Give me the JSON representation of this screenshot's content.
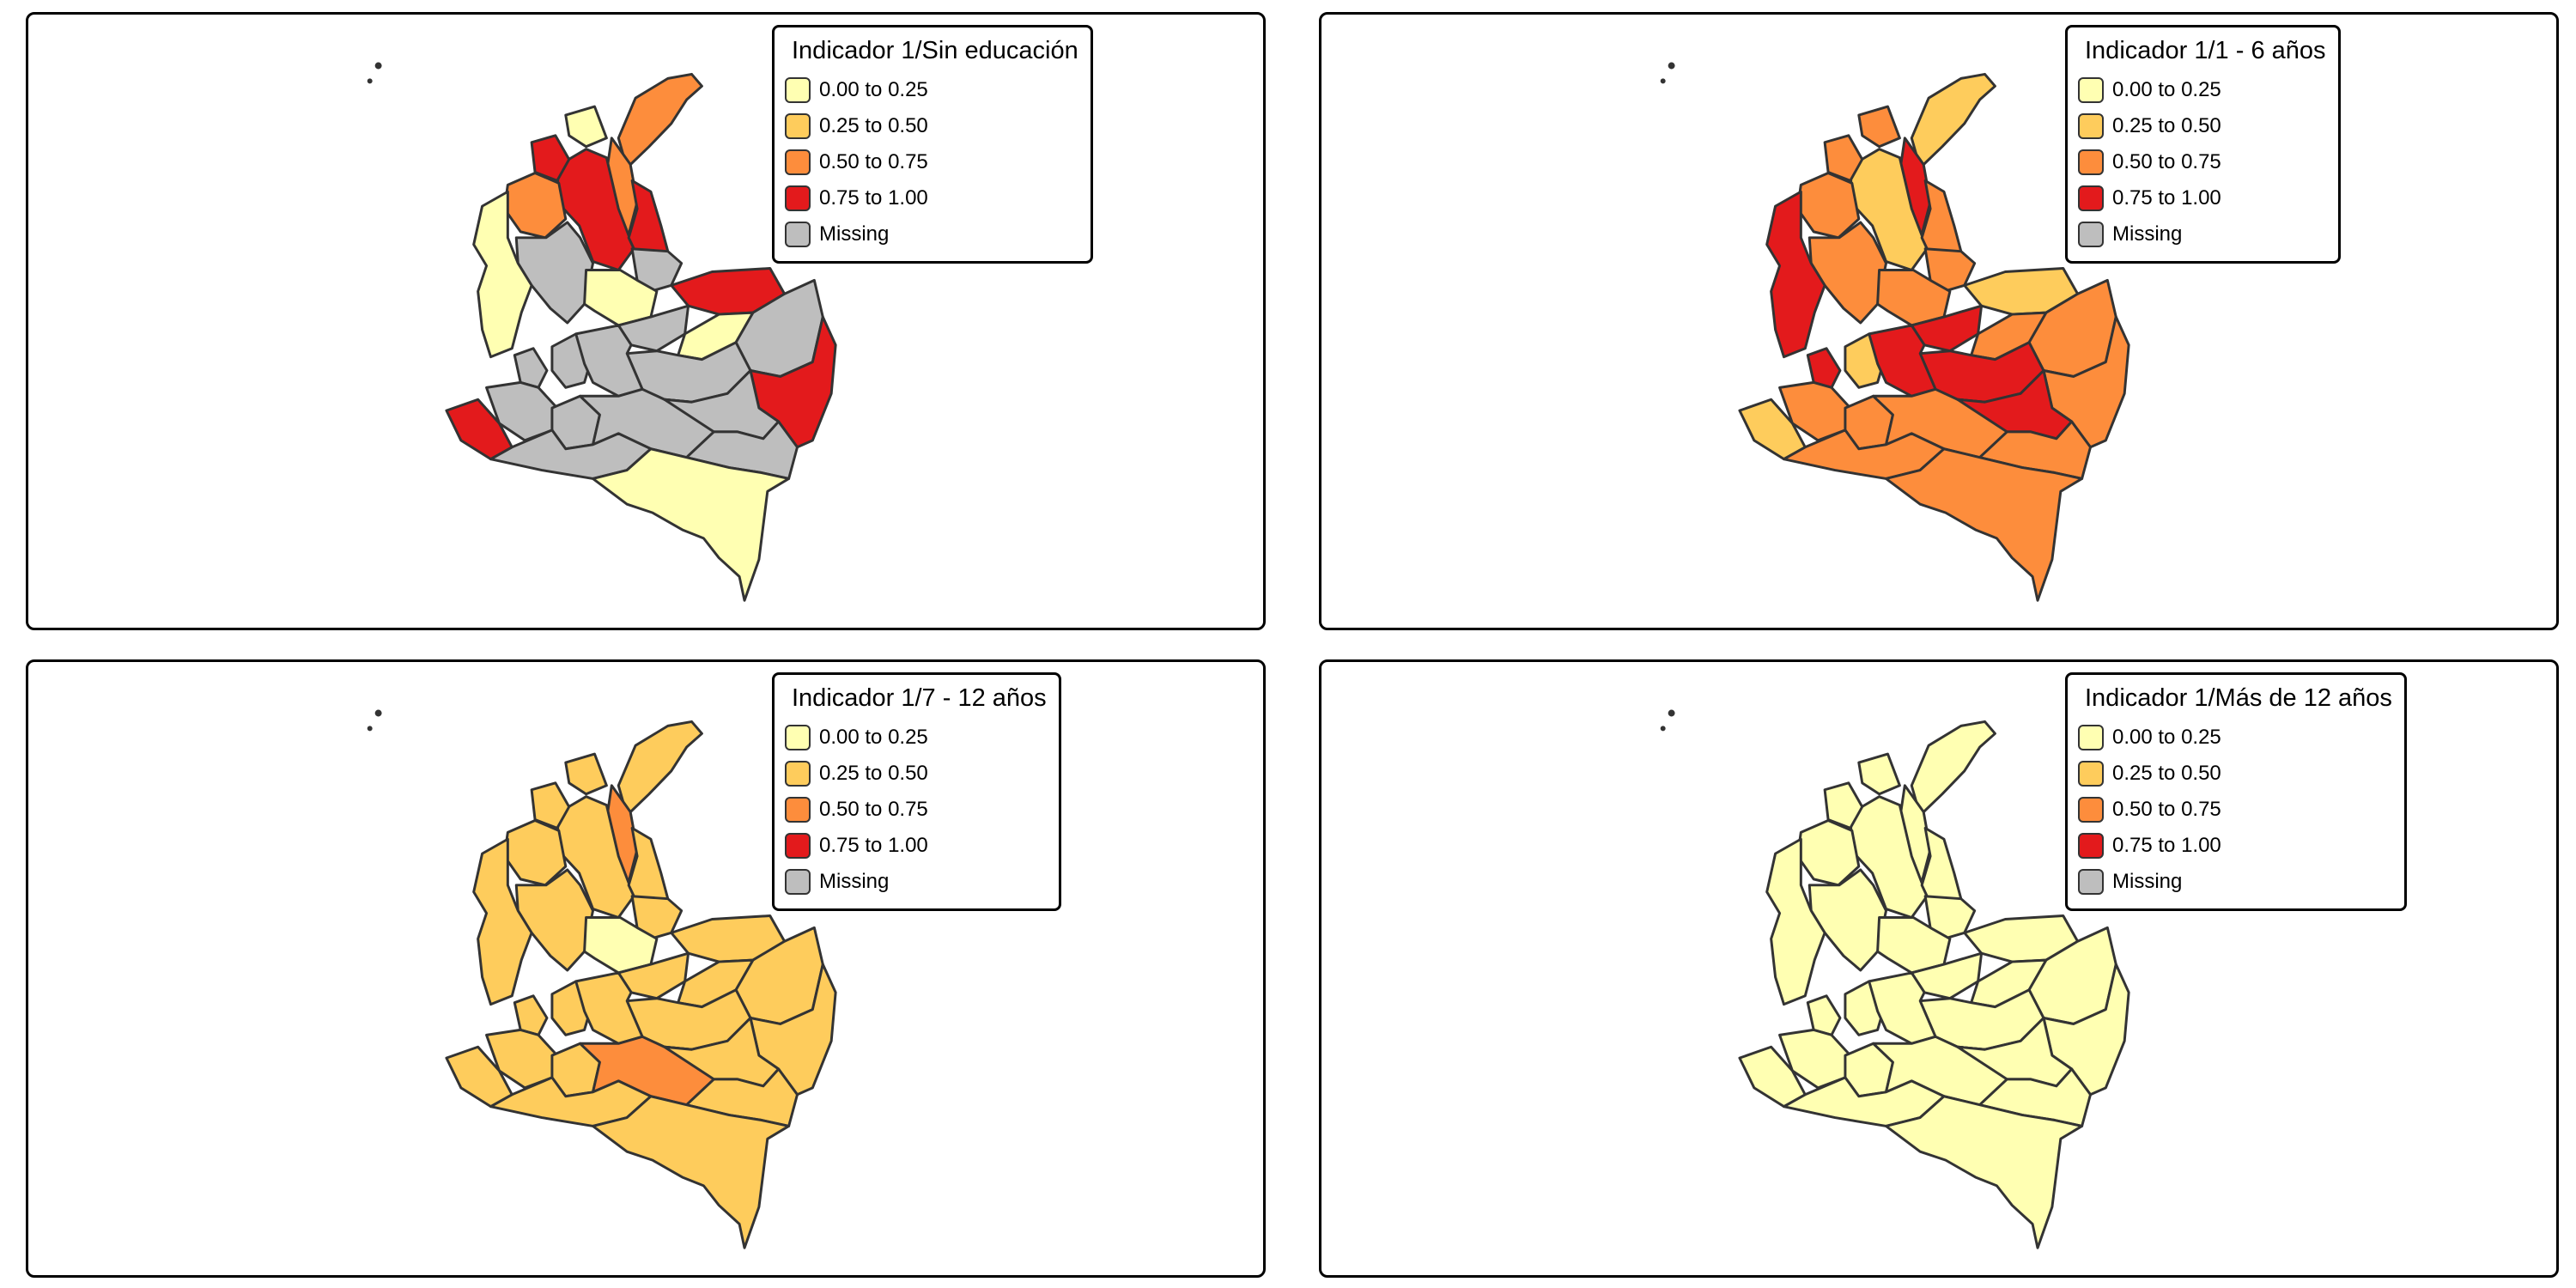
{
  "legend_classes": [
    {
      "label": "0.00 to 0.25",
      "color": "#ffffb2"
    },
    {
      "label": "0.25 to 0.50",
      "color": "#fecc5c"
    },
    {
      "label": "0.50 to 0.75",
      "color": "#fd8d3c"
    },
    {
      "label": "0.75 to 1.00",
      "color": "#e31a1c"
    },
    {
      "label": "Missing",
      "color": "#bebebe"
    }
  ],
  "panels": [
    {
      "title": "Indicador 1/Sin educación",
      "region_classes": {
        "guajira": "0.50 to 0.75",
        "magdalena": "0.50 to 0.75",
        "atlantico": "0.00 to 0.25",
        "bolivar": "0.75 to 1.00",
        "sucre": "0.75 to 1.00",
        "cordoba": "0.50 to 0.75",
        "cesar": "0.75 to 1.00",
        "antioquia": "Missing",
        "choco": "0.00 to 0.25",
        "norte_santander": "Missing",
        "santander": "0.00 to 0.25",
        "arauca": "0.75 to 1.00",
        "boyaca": "Missing",
        "casanare": "0.00 to 0.25",
        "vichada": "Missing",
        "meta": "Missing",
        "guainia": "0.75 to 1.00",
        "valle": "Missing",
        "cauca": "Missing",
        "narino": "0.75 to 1.00",
        "huila": "Missing",
        "tolima": "Missing",
        "cundinamarca": "Missing",
        "caqueta": "Missing",
        "guaviare": "Missing",
        "vaupes": "Missing",
        "putumayo": "Missing",
        "amazonas": "0.00 to 0.25"
      }
    },
    {
      "title": "Indicador 1/1 - 6 años",
      "region_classes": {
        "guajira": "0.25 to 0.50",
        "magdalena": "0.75 to 1.00",
        "atlantico": "0.50 to 0.75",
        "bolivar": "0.25 to 0.50",
        "sucre": "0.50 to 0.75",
        "cordoba": "0.50 to 0.75",
        "cesar": "0.50 to 0.75",
        "antioquia": "0.50 to 0.75",
        "choco": "0.75 to 1.00",
        "norte_santander": "0.50 to 0.75",
        "santander": "0.50 to 0.75",
        "arauca": "0.25 to 0.50",
        "boyaca": "0.75 to 1.00",
        "casanare": "0.50 to 0.75",
        "vichada": "0.50 to 0.75",
        "meta": "0.75 to 1.00",
        "guainia": "0.50 to 0.75",
        "valle": "0.75 to 1.00",
        "cauca": "0.50 to 0.75",
        "narino": "0.25 to 0.50",
        "huila": "0.50 to 0.75",
        "tolima": "0.25 to 0.50",
        "cundinamarca": "0.75 to 1.00",
        "caqueta": "0.50 to 0.75",
        "guaviare": "0.75 to 1.00",
        "vaupes": "0.50 to 0.75",
        "putumayo": "0.50 to 0.75",
        "amazonas": "0.50 to 0.75"
      }
    },
    {
      "title": "Indicador 1/7 - 12 años",
      "region_classes": {
        "guajira": "0.25 to 0.50",
        "magdalena": "0.50 to 0.75",
        "atlantico": "0.25 to 0.50",
        "bolivar": "0.25 to 0.50",
        "sucre": "0.25 to 0.50",
        "cordoba": "0.25 to 0.50",
        "cesar": "0.25 to 0.50",
        "antioquia": "0.25 to 0.50",
        "choco": "0.25 to 0.50",
        "norte_santander": "0.25 to 0.50",
        "santander": "0.00 to 0.25",
        "arauca": "0.25 to 0.50",
        "boyaca": "0.25 to 0.50",
        "casanare": "0.25 to 0.50",
        "vichada": "0.25 to 0.50",
        "meta": "0.25 to 0.50",
        "guainia": "0.25 to 0.50",
        "valle": "0.25 to 0.50",
        "cauca": "0.25 to 0.50",
        "narino": "0.25 to 0.50",
        "huila": "0.25 to 0.50",
        "tolima": "0.25 to 0.50",
        "cundinamarca": "0.25 to 0.50",
        "caqueta": "0.50 to 0.75",
        "guaviare": "0.25 to 0.50",
        "vaupes": "0.25 to 0.50",
        "putumayo": "0.25 to 0.50",
        "amazonas": "0.25 to 0.50"
      }
    },
    {
      "title": "Indicador 1/Más de 12 años",
      "region_classes": {
        "guajira": "0.00 to 0.25",
        "magdalena": "0.00 to 0.25",
        "atlantico": "0.00 to 0.25",
        "bolivar": "0.00 to 0.25",
        "sucre": "0.00 to 0.25",
        "cordoba": "0.00 to 0.25",
        "cesar": "0.00 to 0.25",
        "antioquia": "0.00 to 0.25",
        "choco": "0.00 to 0.25",
        "norte_santander": "0.00 to 0.25",
        "santander": "0.00 to 0.25",
        "arauca": "0.00 to 0.25",
        "boyaca": "0.00 to 0.25",
        "casanare": "0.00 to 0.25",
        "vichada": "0.00 to 0.25",
        "meta": "0.00 to 0.25",
        "guainia": "0.00 to 0.25",
        "valle": "0.00 to 0.25",
        "cauca": "0.00 to 0.25",
        "narino": "0.00 to 0.25",
        "huila": "0.00 to 0.25",
        "tolima": "0.00 to 0.25",
        "cundinamarca": "0.00 to 0.25",
        "caqueta": "0.00 to 0.25",
        "guaviare": "0.00 to 0.25",
        "vaupes": "0.00 to 0.25",
        "putumayo": "0.00 to 0.25",
        "amazonas": "0.00 to 0.25"
      }
    }
  ]
}
